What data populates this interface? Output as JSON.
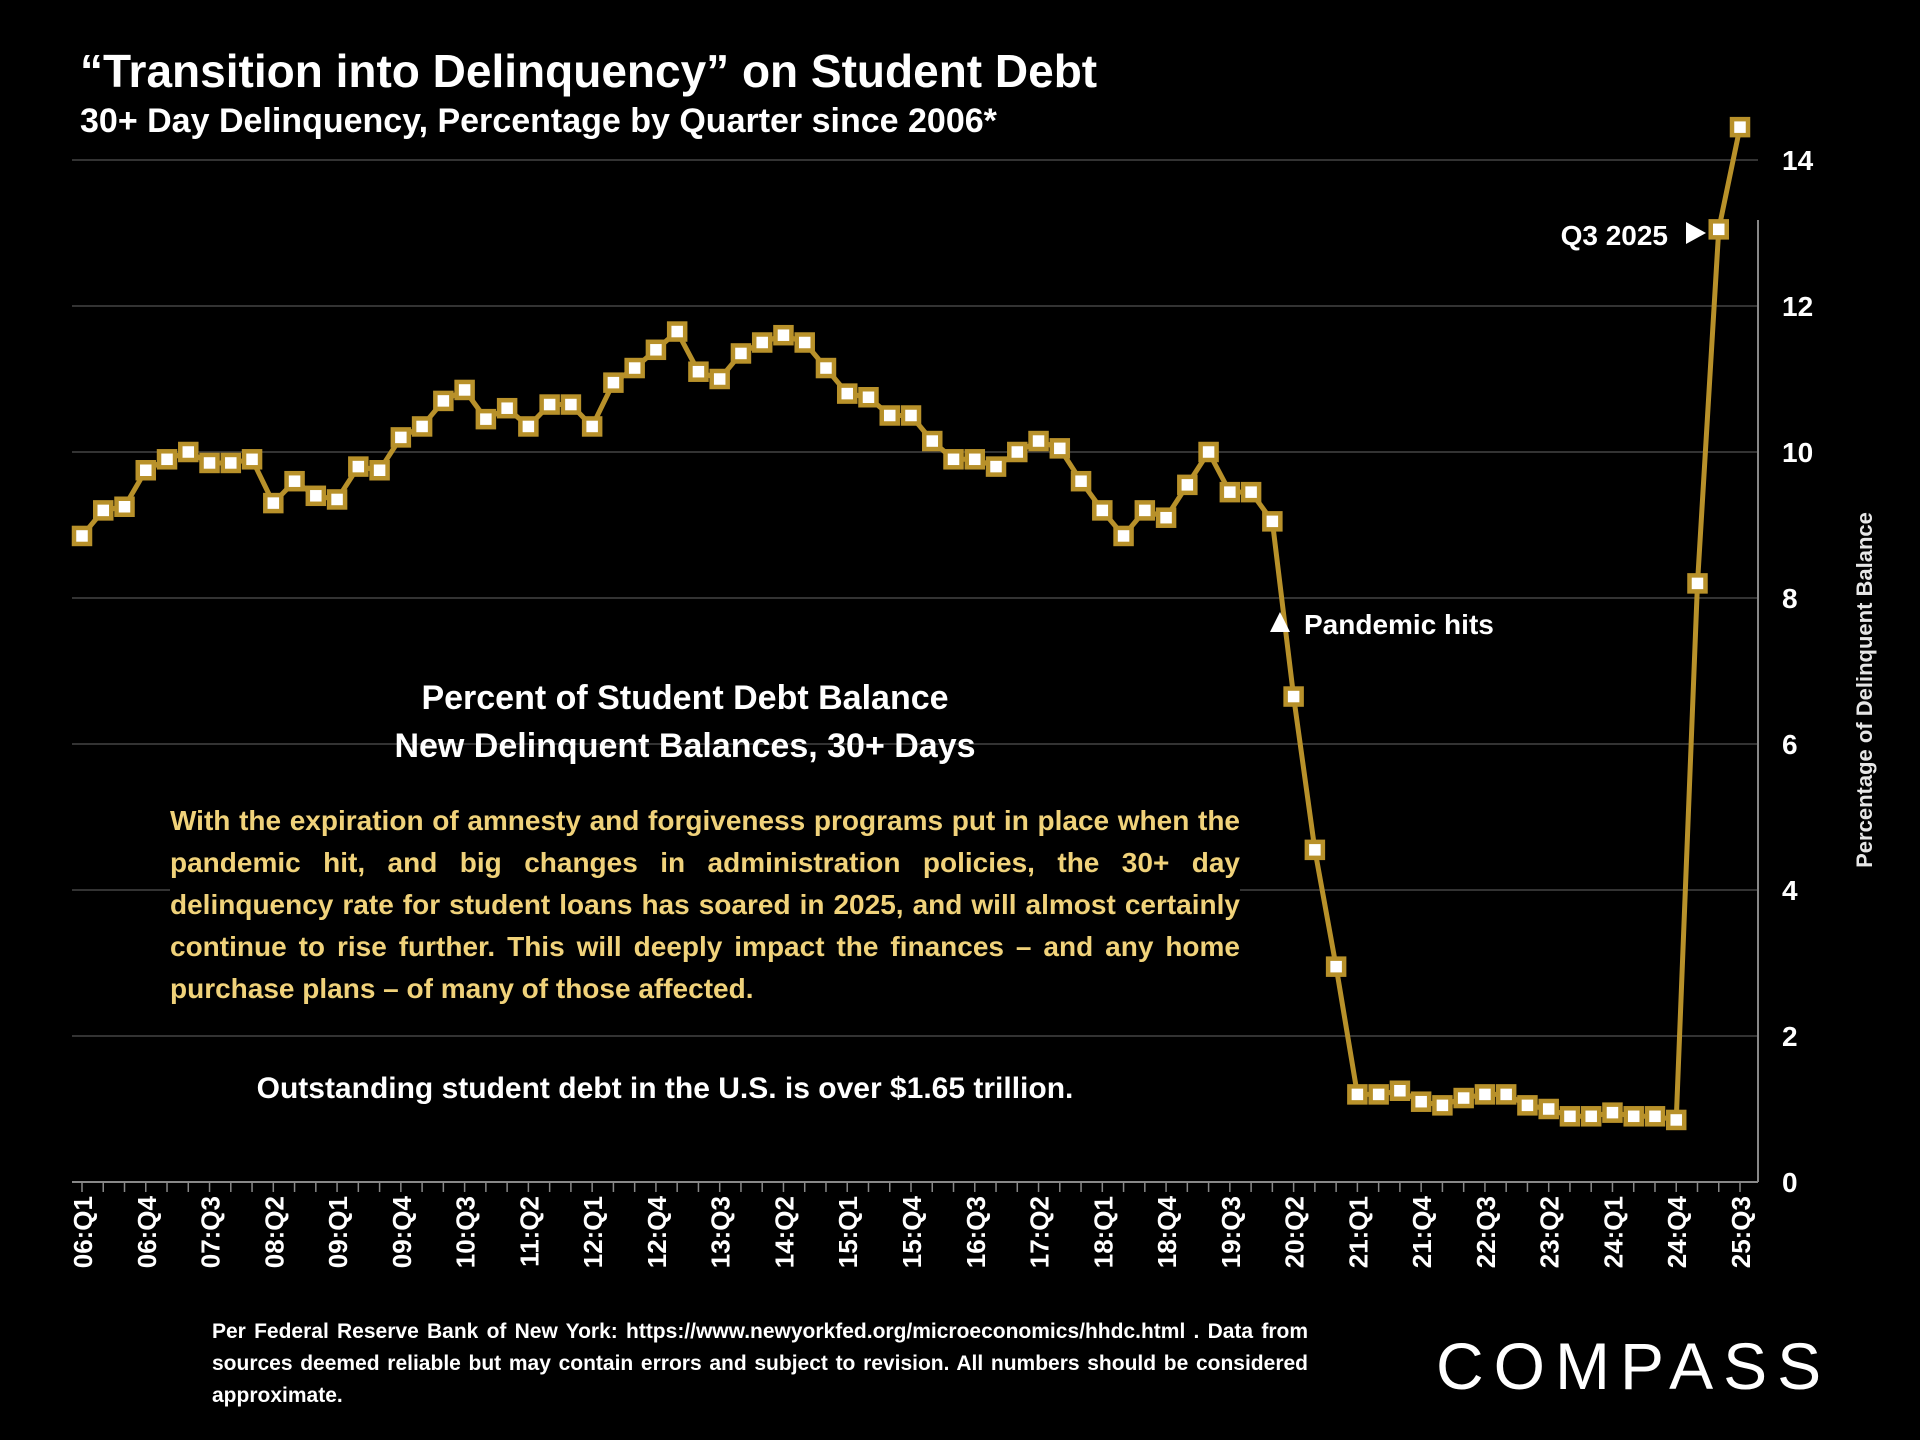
{
  "header": {
    "title": "“Transition into Delinquency” on Student Debt",
    "subtitle": "30+ Day Delinquency, Percentage by Quarter since 2006*"
  },
  "annotations": {
    "chart_heading_line1": "Percent of Student Debt Balance",
    "chart_heading_line2": "New Delinquent  Balances, 30+ Days",
    "body": "With the expiration of amnesty and forgiveness programs put in place when the pandemic hit, and big changes in administration policies, the 30+ day delinquency rate for student loans has soared in 2025, and will almost certainly continue to rise further. This will deeply impact the finances – and any home purchase plans – of many of those affected.",
    "debt_note": "Outstanding student debt in the U.S. is over $1.65 trillion.",
    "pandemic_label": "Pandemic hits",
    "latest_label": "Q3 2025"
  },
  "footnote": "Per Federal Reserve Bank of New York: https://www.newyorkfed.org/microeconomics/hhdc.html . Data from sources deemed reliable but may contain errors and subject to revision. All numbers should be considered approximate.",
  "logo": "COMPASS",
  "colors": {
    "series": "#b8912a",
    "marker_fill": "#ffffff",
    "annotation_text": "#f0d27a",
    "grid": "#444444"
  },
  "chart_data": {
    "type": "line",
    "title": "“Transition into Delinquency” on Student Debt",
    "ylabel": "Percentage of Delinquent Balance",
    "y_axis_side": "right",
    "ylim": [
      0,
      14
    ],
    "yticks": [
      0,
      2,
      4,
      6,
      8,
      10,
      12,
      14
    ],
    "grid": true,
    "tick_labels": [
      "06:Q1",
      "06:Q4",
      "07:Q3",
      "08:Q2",
      "09:Q1",
      "09:Q4",
      "10:Q3",
      "11:Q2",
      "12:Q1",
      "12:Q4",
      "13:Q3",
      "14:Q2",
      "15:Q1",
      "15:Q4",
      "16:Q3",
      "17:Q2",
      "18:Q1",
      "18:Q4",
      "19:Q3",
      "20:Q2",
      "21:Q1",
      "21:Q4",
      "22:Q3",
      "23:Q2",
      "24:Q1",
      "24:Q4",
      "25:Q3"
    ],
    "x": [
      "06:Q1",
      "06:Q2",
      "06:Q3",
      "06:Q4",
      "07:Q1",
      "07:Q2",
      "07:Q3",
      "07:Q4",
      "08:Q1",
      "08:Q2",
      "08:Q3",
      "08:Q4",
      "09:Q1",
      "09:Q2",
      "09:Q3",
      "09:Q4",
      "10:Q1",
      "10:Q2",
      "10:Q3",
      "10:Q4",
      "11:Q1",
      "11:Q2",
      "11:Q3",
      "11:Q4",
      "12:Q1",
      "12:Q2",
      "12:Q3",
      "12:Q4",
      "13:Q1",
      "13:Q2",
      "13:Q3",
      "13:Q4",
      "14:Q1",
      "14:Q2",
      "14:Q3",
      "14:Q4",
      "15:Q1",
      "15:Q2",
      "15:Q3",
      "15:Q4",
      "16:Q1",
      "16:Q2",
      "16:Q3",
      "16:Q4",
      "17:Q1",
      "17:Q2",
      "17:Q3",
      "17:Q4",
      "18:Q1",
      "18:Q2",
      "18:Q3",
      "18:Q4",
      "19:Q1",
      "19:Q2",
      "19:Q3",
      "19:Q4",
      "20:Q1",
      "20:Q2",
      "20:Q3",
      "20:Q4",
      "21:Q1",
      "21:Q2",
      "21:Q3",
      "21:Q4",
      "22:Q1",
      "22:Q2",
      "22:Q3",
      "22:Q4",
      "23:Q1",
      "23:Q2",
      "23:Q3",
      "23:Q4",
      "24:Q1",
      "24:Q2",
      "24:Q3",
      "24:Q4",
      "25:Q1",
      "25:Q2",
      "25:Q3"
    ],
    "series": [
      {
        "values": [
          8.85,
          9.2,
          9.25,
          9.75,
          9.9,
          10.0,
          9.85,
          9.85,
          9.9,
          9.3,
          9.6,
          9.4,
          9.35,
          9.8,
          9.75,
          10.2,
          10.35,
          10.7,
          10.85,
          10.45,
          10.6,
          10.35,
          10.65,
          10.65,
          10.35,
          10.95,
          11.15,
          11.4,
          11.65,
          11.1,
          11.0,
          11.35,
          11.5,
          11.6,
          11.5,
          11.15,
          10.8,
          10.75,
          10.5,
          10.5,
          10.15,
          9.9,
          9.9,
          9.8,
          10.0,
          10.15,
          10.05,
          9.6,
          9.2,
          8.85,
          9.2,
          9.1,
          9.55,
          10.0,
          9.45,
          9.45,
          9.05,
          6.65,
          4.55,
          2.95,
          1.2,
          1.2,
          1.25,
          1.1,
          1.05,
          1.15,
          1.2,
          1.2,
          1.05,
          1.0,
          0.9,
          0.9,
          0.95,
          0.9,
          0.9,
          0.85,
          8.2,
          13.05,
          14.45
        ]
      }
    ],
    "annotations": [
      {
        "text": "Pandemic hits",
        "x": "20:Q1"
      },
      {
        "text": "Q3 2025",
        "x": "25:Q3"
      }
    ]
  }
}
